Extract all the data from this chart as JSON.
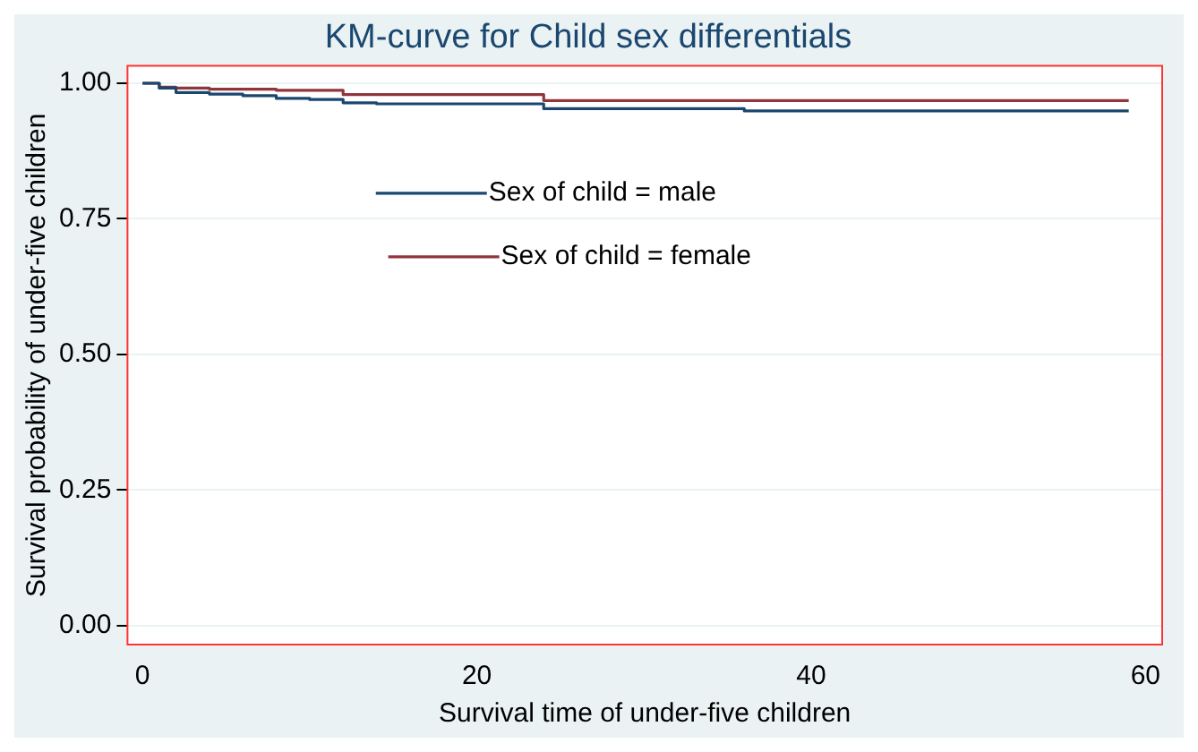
{
  "chart_data": {
    "type": "step",
    "title": "KM-curve for Child sex differentials",
    "xlabel": "Survival time of under-five children",
    "ylabel": "Survival probability of under-five children",
    "series": [
      {
        "name": "Sex of child = male",
        "color": "#1a476f",
        "x": [
          0,
          1,
          2,
          4,
          6,
          8,
          10,
          12,
          14,
          24,
          36,
          59
        ],
        "values": [
          1,
          0.991,
          0.983,
          0.98,
          0.977,
          0.972,
          0.97,
          0.964,
          0.962,
          0.953,
          0.949,
          0.949
        ]
      },
      {
        "name": "Sex of child = female",
        "color": "#90353b",
        "x": [
          0,
          1,
          2,
          4,
          8,
          12,
          24,
          59
        ],
        "values": [
          1,
          0.993,
          0.991,
          0.989,
          0.987,
          0.979,
          0.968,
          0.968
        ]
      }
    ],
    "xlim": [
      -0.9,
      61
    ],
    "xticks": [
      0,
      20,
      40,
      60
    ],
    "ylim": [
      -0.035,
      1.032
    ],
    "yticks": [
      {
        "value": 0,
        "label": "0.00"
      },
      {
        "value": 0.25,
        "label": "0.25"
      },
      {
        "value": 0.5,
        "label": "0.50"
      },
      {
        "value": 0.75,
        "label": "0.75"
      },
      {
        "value": 1,
        "label": "1.00"
      }
    ],
    "grid": "y",
    "legend": "top",
    "marker": "none",
    "line_style": "solid"
  }
}
